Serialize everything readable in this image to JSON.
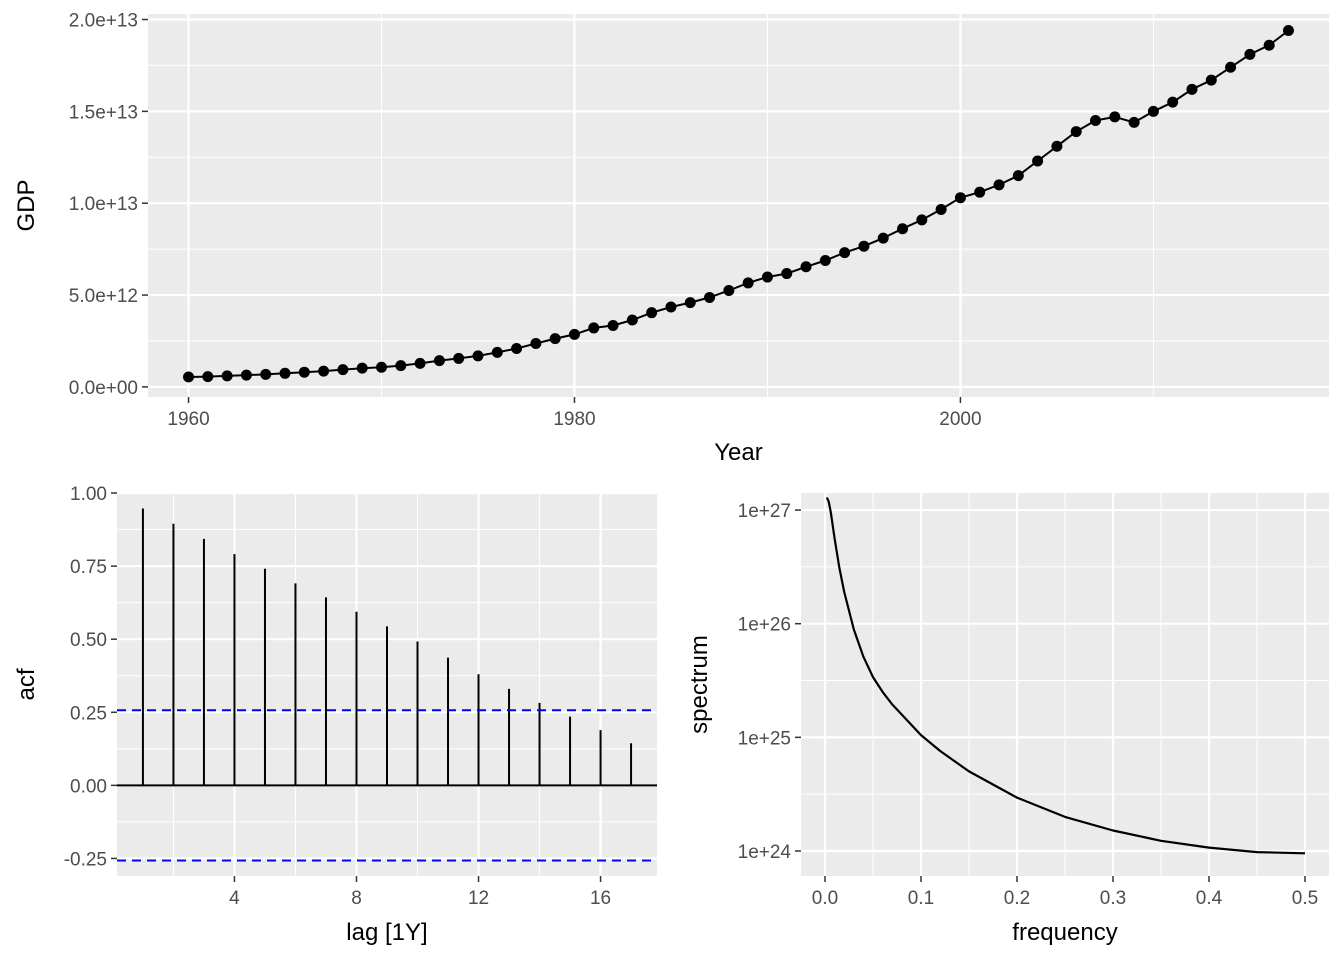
{
  "chart_data": [
    {
      "type": "line",
      "id": "gdp",
      "xlabel": "Year",
      "ylabel": "GDP",
      "xlim": [
        1957.9,
        2019.1
      ],
      "ylim": [
        -550000000000.0,
        20300000000000.0
      ],
      "x_ticks": [
        1960,
        1980,
        2000
      ],
      "x_tick_labels": [
        "1960",
        "1980",
        "2000"
      ],
      "y_ticks": [
        0,
        5000000000000.0,
        10000000000000.0,
        15000000000000.0,
        20000000000000.0
      ],
      "y_tick_labels": [
        "0.0e+00",
        "5.0e+12",
        "1.0e+13",
        "1.5e+13",
        "2.0e+13"
      ],
      "markers": true,
      "line_color": "#000000",
      "panel_color": "#ebebeb",
      "grid": true,
      "series": [
        {
          "x": [
            1960,
            1961,
            1962,
            1963,
            1964,
            1965,
            1966,
            1967,
            1968,
            1969,
            1970,
            1971,
            1972,
            1973,
            1974,
            1975,
            1976,
            1977,
            1978,
            1979,
            1980,
            1981,
            1982,
            1983,
            1984,
            1985,
            1986,
            1987,
            1988,
            1989,
            1990,
            1991,
            1992,
            1993,
            1994,
            1995,
            1996,
            1997,
            1998,
            1999,
            2000,
            2001,
            2002,
            2003,
            2004,
            2005,
            2006,
            2007,
            2008,
            2009,
            2010,
            2011,
            2012,
            2013,
            2014,
            2015,
            2016,
            2017
          ],
          "values": [
            540000000000.0,
            560000000000.0,
            600000000000.0,
            640000000000.0,
            680000000000.0,
            740000000000.0,
            800000000000.0,
            860000000000.0,
            940000000000.0,
            1020000000000.0,
            1070000000000.0,
            1160000000000.0,
            1280000000000.0,
            1430000000000.0,
            1550000000000.0,
            1690000000000.0,
            1880000000000.0,
            2090000000000.0,
            2360000000000.0,
            2630000000000.0,
            2860000000000.0,
            3210000000000.0,
            3340000000000.0,
            3640000000000.0,
            4040000000000.0,
            4350000000000.0,
            4590000000000.0,
            4870000000000.0,
            5250000000000.0,
            5660000000000.0,
            5980000000000.0,
            6170000000000.0,
            6540000000000.0,
            6880000000000.0,
            7310000000000.0,
            7660000000000.0,
            8100000000000.0,
            8610000000000.0,
            9090000000000.0,
            9660000000000.0,
            10300000000000.0,
            10600000000000.0,
            11000000000000.0,
            11500000000000.0,
            12300000000000.0,
            13100000000000.0,
            13900000000000.0,
            14500000000000.0,
            14700000000000.0,
            14400000000000.0,
            15000000000000.0,
            15500000000000.0,
            16200000000000.0,
            16700000000000.0,
            17400000000000.0,
            18100000000000.0,
            18600000000000.0,
            19400000000000.0
          ]
        }
      ]
    },
    {
      "type": "bar",
      "id": "acf",
      "xlabel": "lag [1Y]",
      "ylabel": "acf",
      "xlim": [
        0.15,
        17.85
      ],
      "ylim": [
        -0.31,
        1.0
      ],
      "x_ticks": [
        4,
        8,
        12,
        16
      ],
      "x_tick_labels": [
        "4",
        "8",
        "12",
        "16"
      ],
      "y_ticks": [
        -0.25,
        0,
        0.25,
        0.5,
        0.75,
        1.0
      ],
      "y_tick_labels": [
        "-0.25",
        "0.00",
        "0.25",
        "0.50",
        "0.75",
        "1.00"
      ],
      "confidence_bound": 0.257,
      "bound_color": "#0000ff",
      "panel_color": "#ebebeb",
      "grid": true,
      "lags": [
        1,
        2,
        3,
        4,
        5,
        6,
        7,
        8,
        9,
        10,
        11,
        12,
        13,
        14,
        15,
        16,
        17
      ],
      "values": [
        0.947,
        0.895,
        0.843,
        0.791,
        0.741,
        0.691,
        0.643,
        0.594,
        0.544,
        0.492,
        0.437,
        0.38,
        0.33,
        0.282,
        0.235,
        0.189,
        0.144
      ]
    },
    {
      "type": "line",
      "id": "spectrum",
      "xlabel": "frequency",
      "ylabel": "spectrum",
      "log_y": true,
      "xlim": [
        -0.025,
        0.525
      ],
      "ylim_log10": [
        23.78,
        27.15
      ],
      "x_ticks": [
        0,
        0.1,
        0.2,
        0.3,
        0.4,
        0.5
      ],
      "x_tick_labels": [
        "0.0",
        "0.1",
        "0.2",
        "0.3",
        "0.4",
        "0.5"
      ],
      "y_ticks_log10": [
        24,
        25,
        26,
        27
      ],
      "y_tick_labels": [
        "1e+24",
        "1e+25",
        "1e+26",
        "1e+27"
      ],
      "line_color": "#000000",
      "panel_color": "#ebebeb",
      "grid": true,
      "series": [
        {
          "x": [
            0.002,
            0.004,
            0.006,
            0.01,
            0.015,
            0.02,
            0.03,
            0.04,
            0.05,
            0.06,
            0.07,
            0.08,
            0.1,
            0.12,
            0.15,
            0.2,
            0.25,
            0.3,
            0.35,
            0.4,
            0.45,
            0.5
          ],
          "log10_values": [
            27.11,
            27.07,
            26.98,
            26.75,
            26.49,
            26.28,
            25.95,
            25.71,
            25.53,
            25.4,
            25.29,
            25.2,
            25.02,
            24.88,
            24.7,
            24.47,
            24.3,
            24.18,
            24.09,
            24.03,
            23.99,
            23.98
          ]
        }
      ]
    }
  ]
}
